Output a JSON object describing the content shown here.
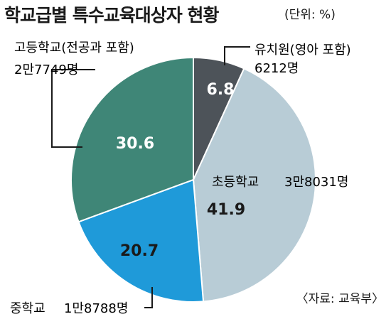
{
  "header": {
    "title": "학교급별 특수교육대상자 현황",
    "unit": "(단위: %)"
  },
  "source": "〈자료: 교육부〉",
  "colors": {
    "kindergarten": "#4d5359",
    "elementary": "#b8ccd6",
    "middle": "#1f9ad9",
    "high": "#3f8677"
  },
  "chart_data": {
    "type": "pie",
    "title": "학교급별 특수교육대상자 현황",
    "unit": "(단위: %)",
    "slices": [
      {
        "key": "kindergarten",
        "name": "유치원(영아 포함)",
        "count": "6212명",
        "value": 6.8,
        "value_label": "6.8"
      },
      {
        "key": "elementary",
        "name": "초등학교",
        "count": "3만8031명",
        "value": 41.9,
        "value_label": "41.9"
      },
      {
        "key": "middle",
        "name": "중학교",
        "count": "1만8788명",
        "value": 20.7,
        "value_label": "20.7"
      },
      {
        "key": "high",
        "name": "고등학교(전공과 포함)",
        "count": "2만7749명",
        "value": 30.6,
        "value_label": "30.6"
      }
    ]
  }
}
